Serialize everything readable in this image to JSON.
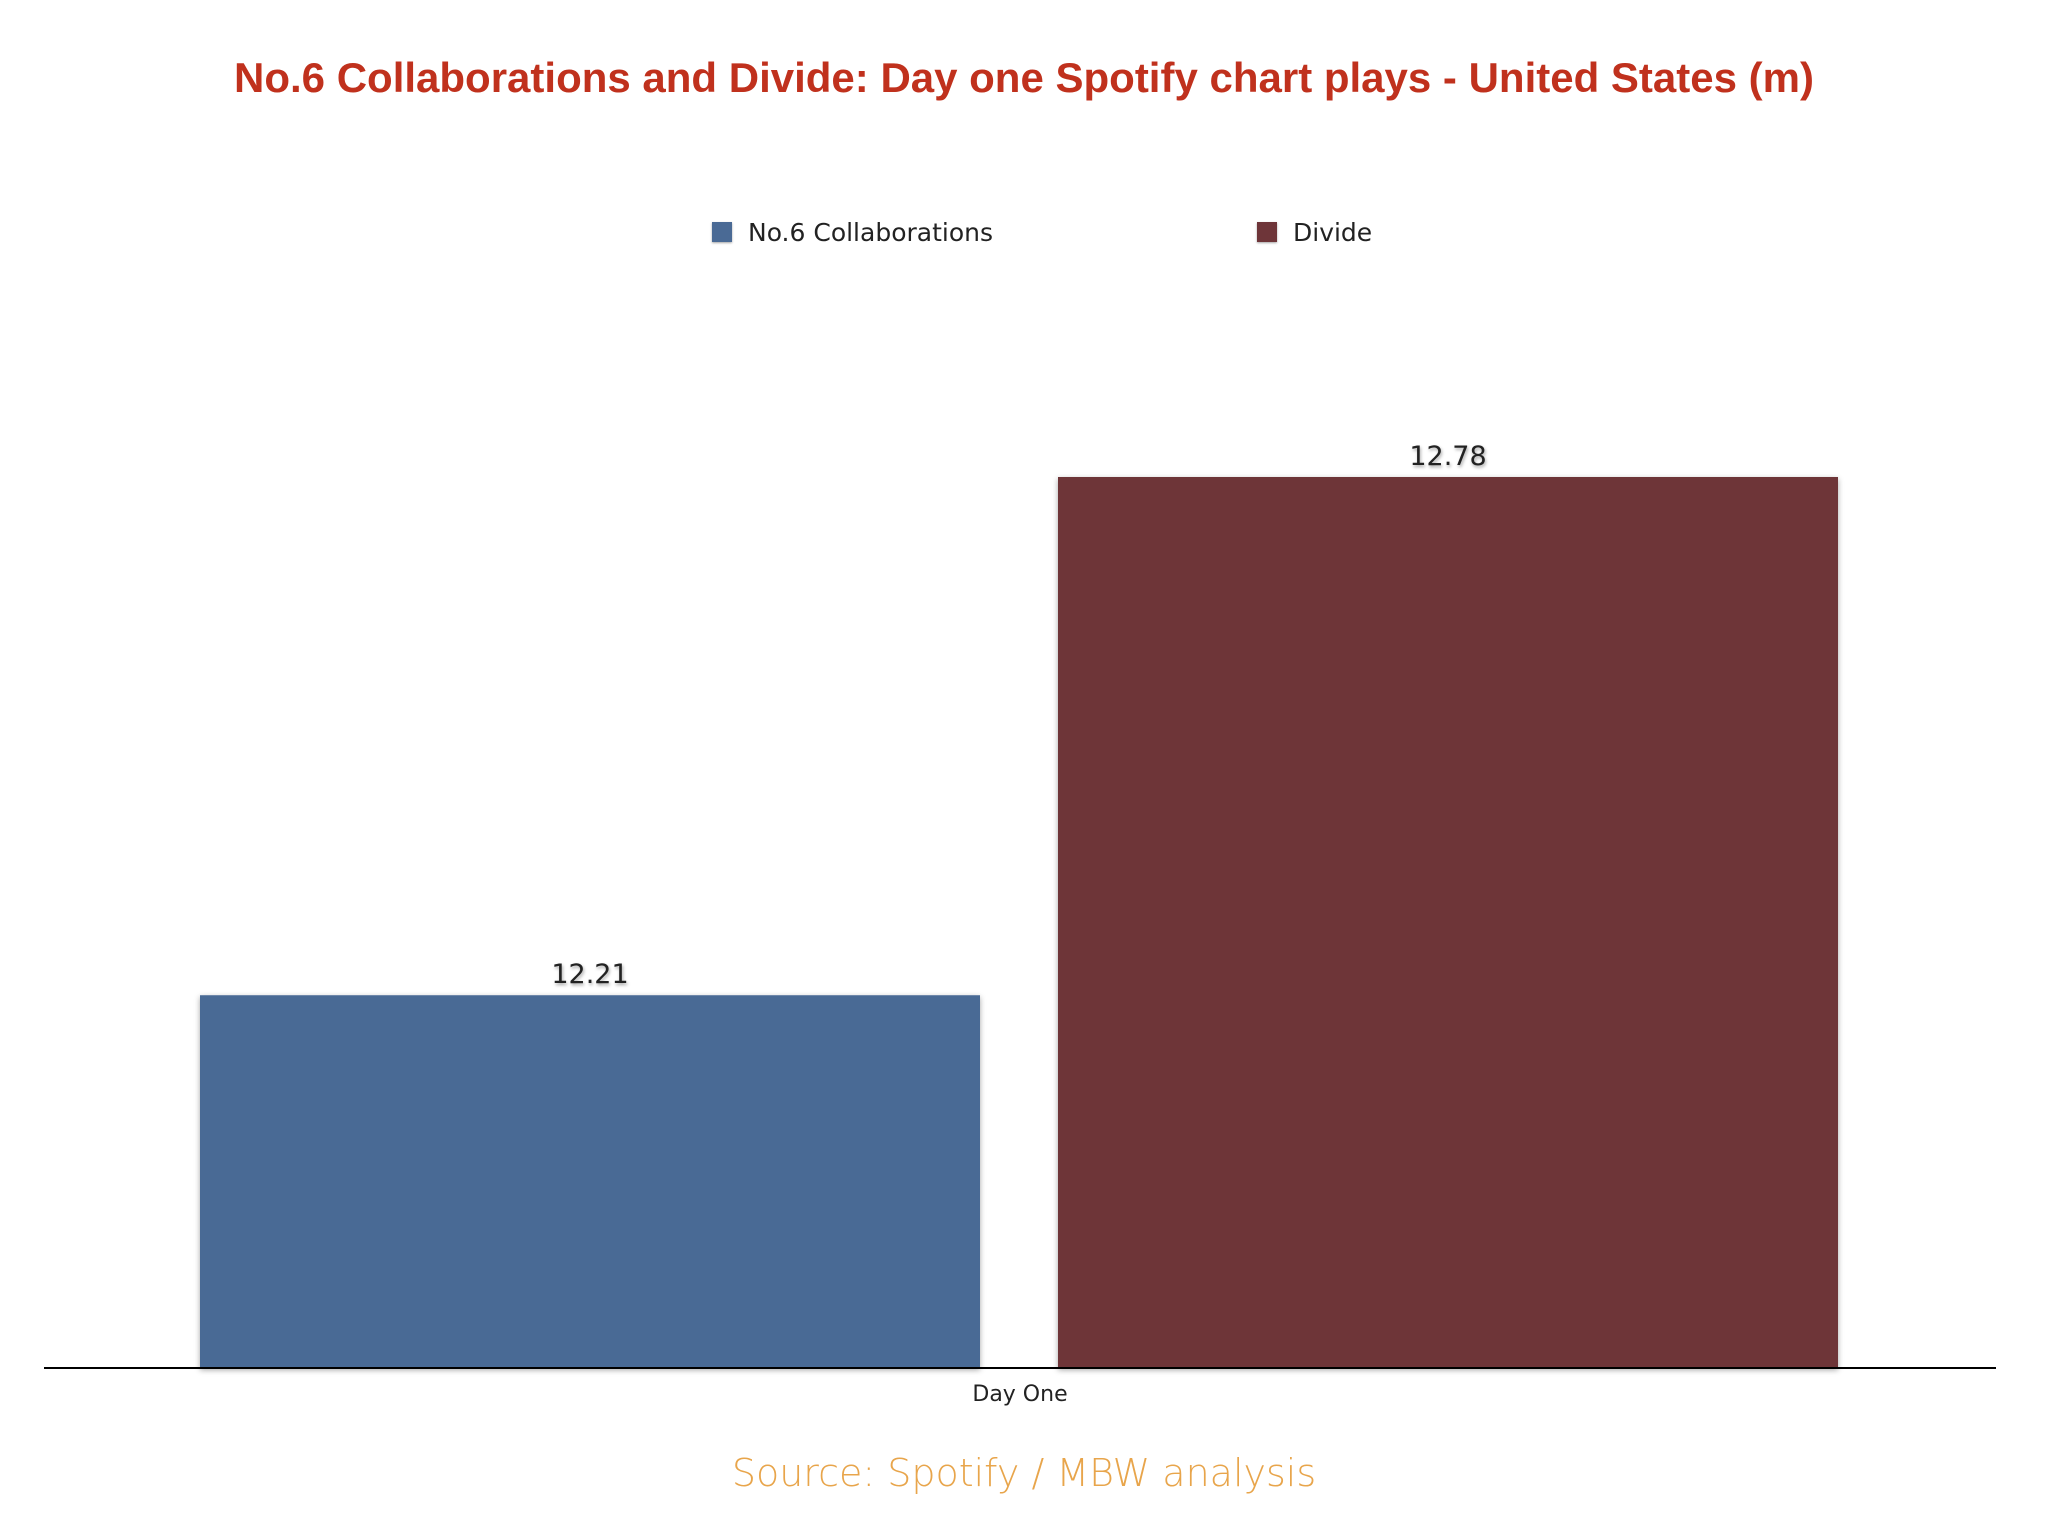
{
  "chart_data": {
    "type": "bar",
    "title": "No.6 Collaborations and Divide: Day one Spotify chart plays - United States (m)",
    "categories": [
      "Day One"
    ],
    "series": [
      {
        "name": "No.6 Collaborations",
        "values": [
          12.21
        ],
        "color": "#4a6a95"
      },
      {
        "name": "Divide",
        "values": [
          12.78
        ],
        "color": "#6e3539"
      }
    ],
    "data_labels": [
      "12.21",
      "12.78"
    ],
    "ylim": [
      11.8,
      12.78
    ],
    "xlabel": "",
    "ylabel": "",
    "grid": false,
    "legend_position": "top-center"
  },
  "source": "Source: Spotify / MBW analysis",
  "colors": {
    "title": "#c0311d",
    "source": "#e8a54b",
    "axis": "#000000"
  }
}
